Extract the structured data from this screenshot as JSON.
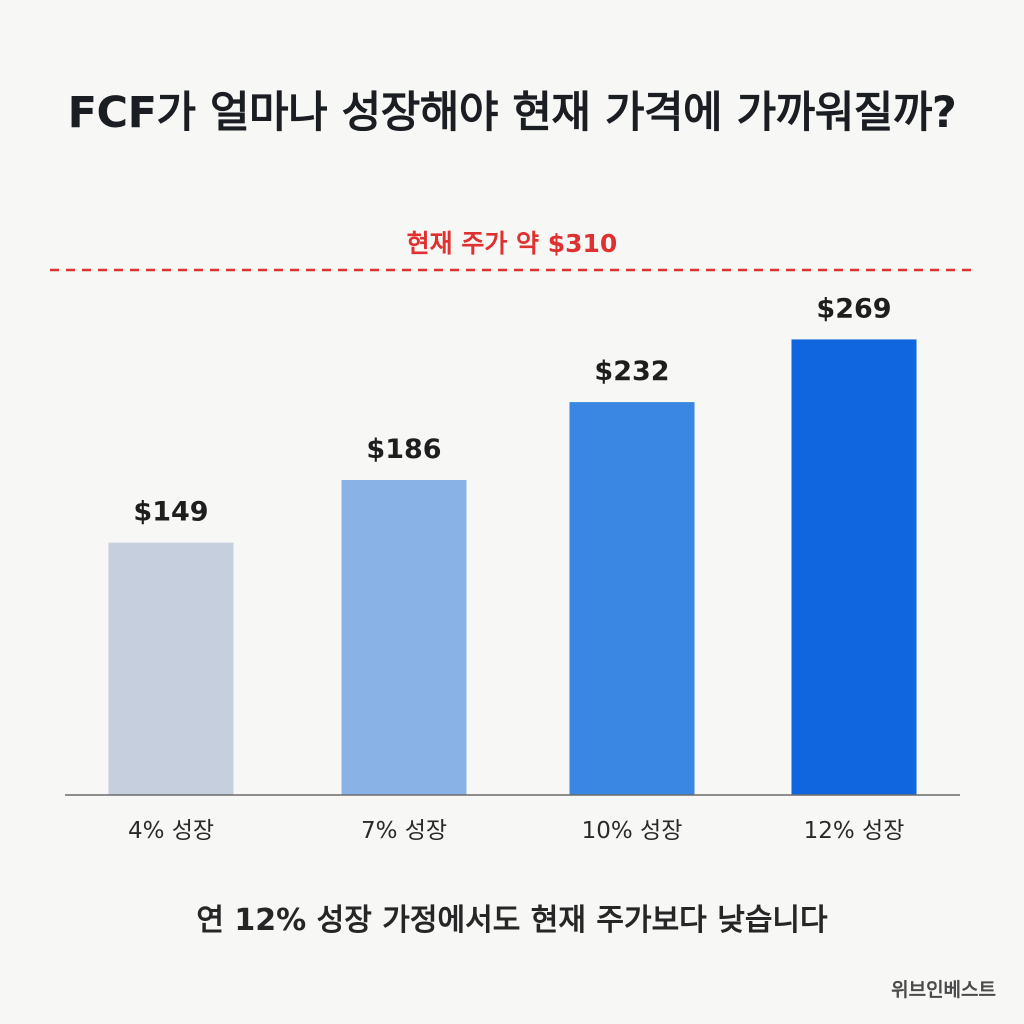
{
  "title": "FCF가 얼마나 성장해야 현재 가격에 가까워질까?",
  "reference": {
    "label": "현재 주가 약 $310",
    "value": 310,
    "color": "#e03131"
  },
  "chart_data": {
    "type": "bar",
    "title": "FCF가 얼마나 성장해야 현재 가격에 가까워질까?",
    "categories": [
      "4% 성장",
      "7% 성장",
      "10% 성장",
      "12% 성장"
    ],
    "values": [
      149,
      186,
      232,
      269
    ],
    "data_labels": [
      "$149",
      "$186",
      "$232",
      "$269"
    ],
    "bar_colors": [
      "#c5cfdd",
      "#89b3e6",
      "#3a87e3",
      "#0f66df"
    ],
    "reference_line": {
      "value": 310,
      "label": "현재 주가 약 $310",
      "style": "dashed",
      "color": "#e03131"
    },
    "xlabel": "",
    "ylabel": "",
    "ylim": [
      0,
      310
    ],
    "grid": false
  },
  "footnote": "연 12% 성장 가정에서도 현재 주가보다 낮습니다",
  "watermark": "위브인베스트"
}
